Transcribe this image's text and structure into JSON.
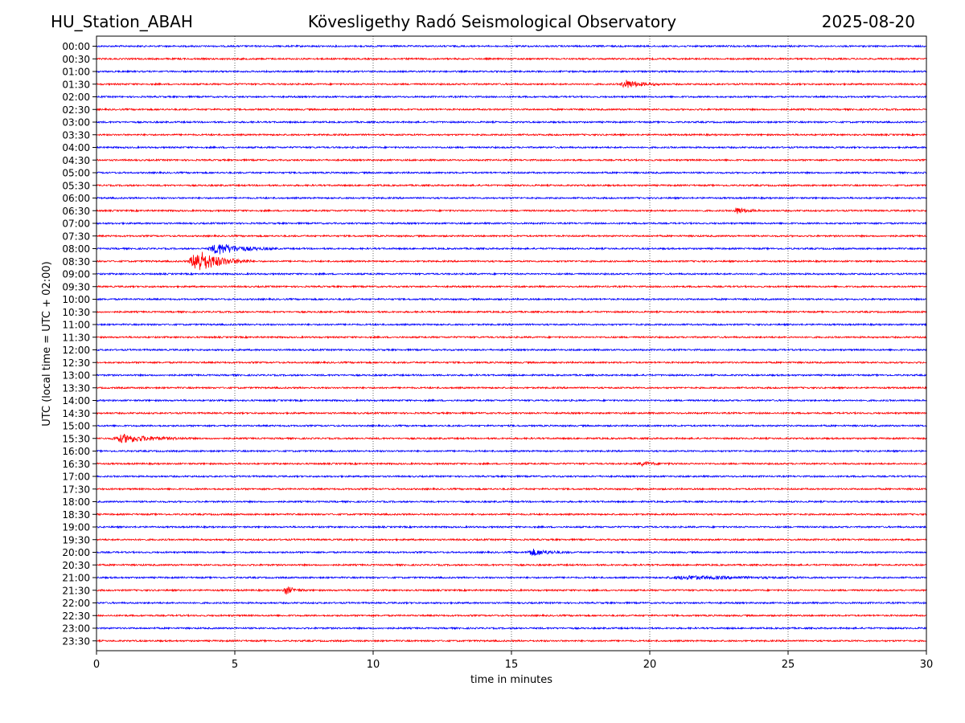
{
  "header": {
    "station": "HU_Station_ABAH",
    "observatory": "Kövesligethy Radó Seismological Observatory",
    "date": "2025-08-20"
  },
  "chart_data": {
    "type": "line",
    "title": "Kövesligethy Radó Seismological Observatory",
    "xlabel": "time in minutes",
    "ylabel": "UTC (local time = UTC + 02:00)",
    "xlim": [
      0,
      30
    ],
    "xticks": [
      0,
      5,
      10,
      15,
      20,
      25,
      30
    ],
    "grid": "vertical dotted at each x tick",
    "colors": {
      "even_row": "#0000ff",
      "odd_row": "#ff0000",
      "grid": "#000000"
    },
    "rows": [
      "00:00",
      "00:30",
      "01:00",
      "01:30",
      "02:00",
      "02:30",
      "03:00",
      "03:30",
      "04:00",
      "04:30",
      "05:00",
      "05:30",
      "06:00",
      "06:30",
      "07:00",
      "07:30",
      "08:00",
      "08:30",
      "09:00",
      "09:30",
      "10:00",
      "10:30",
      "11:00",
      "11:30",
      "12:00",
      "12:30",
      "13:00",
      "13:30",
      "14:00",
      "14:30",
      "15:00",
      "15:30",
      "16:00",
      "16:30",
      "17:00",
      "17:30",
      "18:00",
      "18:30",
      "19:00",
      "19:30",
      "20:00",
      "20:30",
      "21:00",
      "21:30",
      "22:00",
      "22:30",
      "23:00",
      "23:30"
    ],
    "events": [
      {
        "row": "01:30",
        "start_min": 18.9,
        "end_min": 20.5,
        "peak_amp": 5
      },
      {
        "row": "06:30",
        "start_min": 23.0,
        "end_min": 24.0,
        "peak_amp": 4
      },
      {
        "row": "08:00",
        "start_min": 4.0,
        "end_min": 6.5,
        "peak_amp": 7
      },
      {
        "row": "08:30",
        "start_min": 3.3,
        "end_min": 5.6,
        "peak_amp": 14
      },
      {
        "row": "15:30",
        "start_min": 0.5,
        "end_min": 3.5,
        "peak_amp": 5
      },
      {
        "row": "16:30",
        "start_min": 19.5,
        "end_min": 21.0,
        "peak_amp": 2
      },
      {
        "row": "20:00",
        "start_min": 15.5,
        "end_min": 17.2,
        "peak_amp": 4
      },
      {
        "row": "21:00",
        "start_min": 20.5,
        "end_min": 26.5,
        "peak_amp": 2
      },
      {
        "row": "21:30",
        "start_min": 6.7,
        "end_min": 7.6,
        "peak_amp": 5
      }
    ]
  }
}
